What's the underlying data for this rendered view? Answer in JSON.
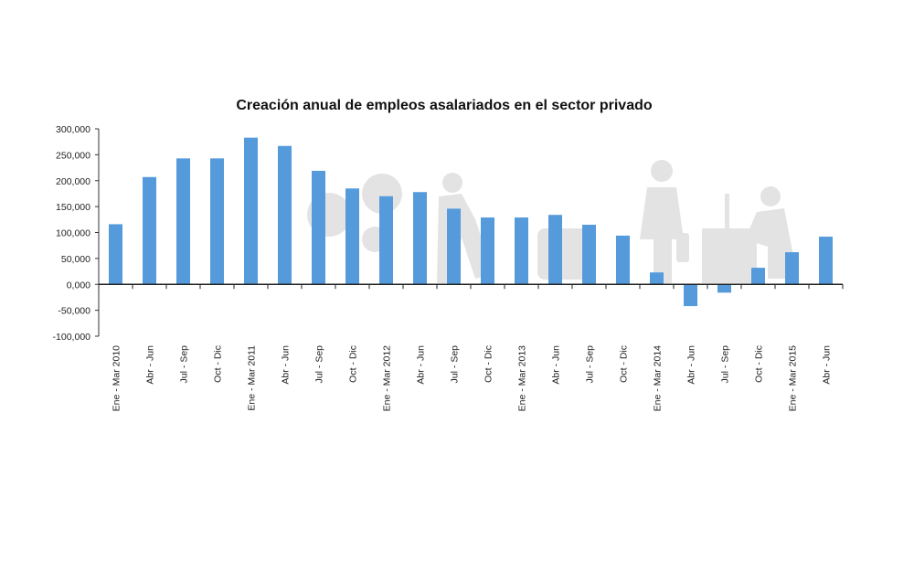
{
  "chart_data": {
    "type": "bar",
    "title": "Creación anual de empleos asalariados en el sector privado",
    "xlabel": "",
    "ylabel": "",
    "ylim": [
      -100000,
      300000
    ],
    "yticks": [
      300000,
      250000,
      200000,
      150000,
      100000,
      50000,
      0,
      -50000,
      -100000
    ],
    "ytick_labels": [
      "300,000",
      "250,000",
      "200,000",
      "150,000",
      "100,000",
      "50,000",
      "0,000",
      "-50,000",
      "-100,000"
    ],
    "categories": [
      "Ene - Mar 2010",
      "Abr - Jun",
      "Jul - Sep",
      "Oct - Dic",
      "Ene - Mar 2011",
      "Abr - Jun",
      "Jul - Sep",
      "Oct - Dic",
      "Ene - Mar 2012",
      "Abr - Jun",
      "Jul - Sep",
      "Oct - Dic",
      "Ene - Mar 2013",
      "Abr - Jun",
      "Jul - Sep",
      "Oct - Dic",
      "Ene - Mar 2014",
      "Abr - Jun",
      "Jul - Sep",
      "Oct - Dic",
      "Ene - Mar 2015",
      "Abr - Jun"
    ],
    "values": [
      116000,
      207000,
      243000,
      243000,
      283000,
      267000,
      219000,
      185000,
      170000,
      178000,
      146000,
      129000,
      129000,
      134000,
      115000,
      94000,
      23000,
      -42000,
      -16000,
      32000,
      62000,
      92000
    ],
    "bar_color": "#559bdb",
    "grid": false,
    "legend": "none"
  }
}
